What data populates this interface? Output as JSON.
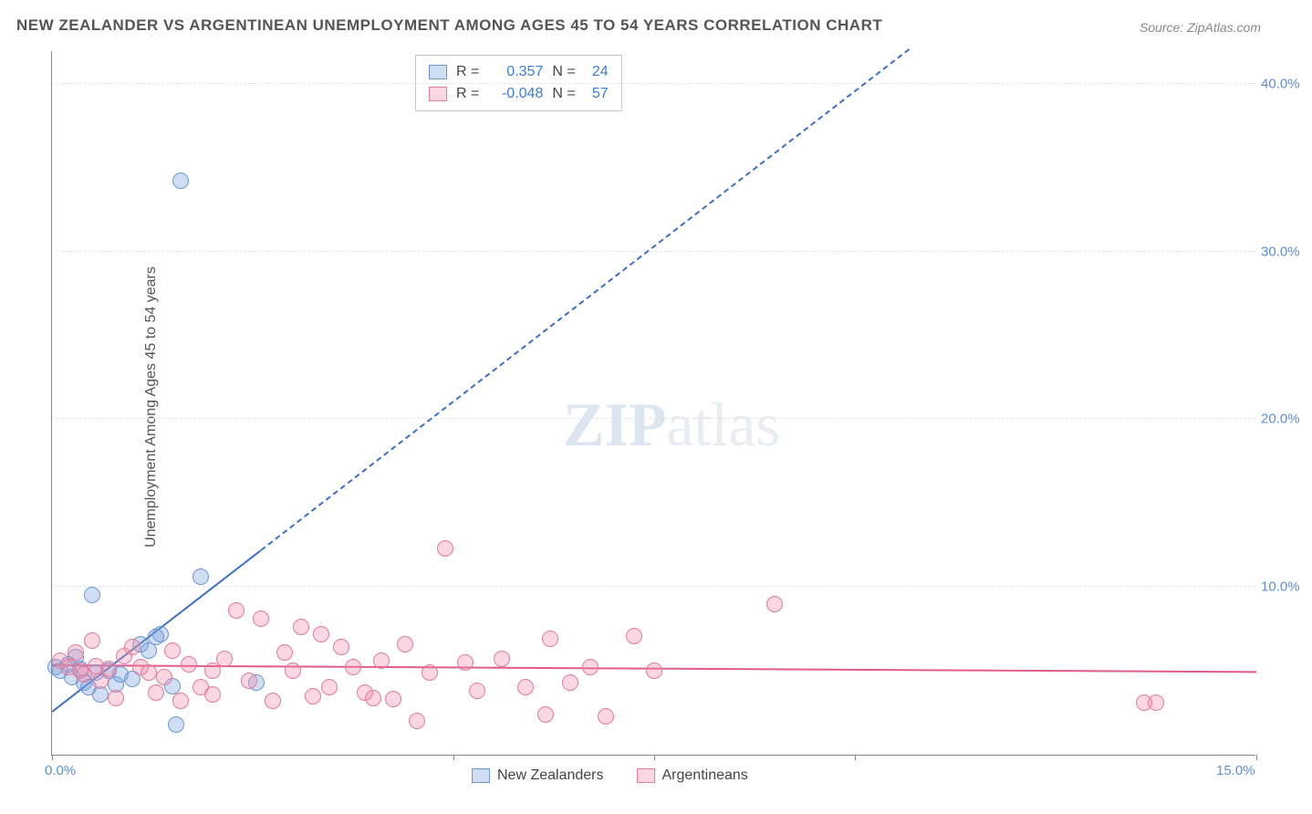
{
  "title": "NEW ZEALANDER VS ARGENTINEAN UNEMPLOYMENT AMONG AGES 45 TO 54 YEARS CORRELATION CHART",
  "source": "Source: ZipAtlas.com",
  "ylabel": "Unemployment Among Ages 45 to 54 years",
  "watermark_bold": "ZIP",
  "watermark_light": "atlas",
  "chart": {
    "type": "scatter",
    "xlim": [
      0,
      15
    ],
    "ylim": [
      0,
      42
    ],
    "xticks": [
      0,
      7.5,
      15
    ],
    "xtick_labels": [
      "0.0%",
      "",
      "15.0%"
    ],
    "xtick_minor": [
      5,
      10
    ],
    "yticks": [
      10,
      20,
      30,
      40
    ],
    "ytick_labels": [
      "10.0%",
      "20.0%",
      "30.0%",
      "40.0%"
    ],
    "grid_color": "#e4e4e4",
    "axis_color": "#888888",
    "background_color": "#ffffff",
    "marker_radius": 9,
    "marker_stroke_width": 1.5,
    "series": [
      {
        "name": "New Zealanders",
        "fill": "rgba(120,160,220,0.35)",
        "stroke": "#6a98d6",
        "r_value": "0.357",
        "n_value": "24",
        "trend": {
          "x1": 0,
          "y1": 2.5,
          "x2": 15,
          "y2": 58,
          "solid_until_x": 2.6,
          "color": "#3c6fc7"
        },
        "points": [
          [
            0.05,
            5.2
          ],
          [
            0.1,
            5.0
          ],
          [
            0.2,
            5.4
          ],
          [
            0.25,
            4.6
          ],
          [
            0.3,
            5.8
          ],
          [
            0.35,
            5.1
          ],
          [
            0.4,
            4.3
          ],
          [
            0.45,
            4.0
          ],
          [
            0.5,
            9.5
          ],
          [
            0.55,
            4.9
          ],
          [
            0.6,
            3.6
          ],
          [
            0.7,
            5.0
          ],
          [
            0.8,
            4.2
          ],
          [
            0.85,
            4.8
          ],
          [
            1.0,
            4.5
          ],
          [
            1.1,
            6.6
          ],
          [
            1.2,
            6.2
          ],
          [
            1.35,
            7.2
          ],
          [
            1.5,
            4.1
          ],
          [
            1.55,
            1.8
          ],
          [
            1.6,
            34.2
          ],
          [
            1.85,
            10.6
          ],
          [
            2.55,
            4.3
          ],
          [
            1.3,
            7.0
          ]
        ]
      },
      {
        "name": "Argentineans",
        "fill": "rgba(240,140,170,0.35)",
        "stroke": "#e27a9d",
        "r_value": "-0.048",
        "n_value": "57",
        "trend": {
          "x1": 0,
          "y1": 5.3,
          "x2": 15,
          "y2": 4.9,
          "solid_until_x": 15,
          "color": "#e05a8a"
        },
        "points": [
          [
            0.1,
            5.6
          ],
          [
            0.2,
            5.2
          ],
          [
            0.3,
            6.1
          ],
          [
            0.35,
            5.0
          ],
          [
            0.4,
            4.8
          ],
          [
            0.5,
            6.8
          ],
          [
            0.55,
            5.3
          ],
          [
            0.6,
            4.4
          ],
          [
            0.7,
            5.1
          ],
          [
            0.8,
            3.4
          ],
          [
            0.9,
            5.9
          ],
          [
            1.0,
            6.4
          ],
          [
            1.1,
            5.2
          ],
          [
            1.2,
            4.9
          ],
          [
            1.3,
            3.7
          ],
          [
            1.4,
            4.6
          ],
          [
            1.5,
            6.2
          ],
          [
            1.6,
            3.2
          ],
          [
            1.7,
            5.4
          ],
          [
            1.85,
            4.0
          ],
          [
            2.0,
            3.6
          ],
          [
            2.15,
            5.7
          ],
          [
            2.3,
            8.6
          ],
          [
            2.45,
            4.4
          ],
          [
            2.6,
            8.1
          ],
          [
            2.75,
            3.2
          ],
          [
            2.9,
            6.1
          ],
          [
            3.0,
            5.0
          ],
          [
            3.1,
            7.6
          ],
          [
            3.25,
            3.5
          ],
          [
            3.35,
            7.2
          ],
          [
            3.45,
            4.0
          ],
          [
            3.6,
            6.4
          ],
          [
            3.75,
            5.2
          ],
          [
            3.9,
            3.7
          ],
          [
            4.1,
            5.6
          ],
          [
            4.25,
            3.3
          ],
          [
            4.4,
            6.6
          ],
          [
            4.55,
            2.0
          ],
          [
            4.7,
            4.9
          ],
          [
            4.9,
            12.3
          ],
          [
            5.15,
            5.5
          ],
          [
            5.3,
            3.8
          ],
          [
            5.6,
            5.7
          ],
          [
            5.9,
            4.0
          ],
          [
            6.15,
            2.4
          ],
          [
            6.2,
            6.9
          ],
          [
            6.45,
            4.3
          ],
          [
            6.7,
            5.2
          ],
          [
            6.9,
            2.3
          ],
          [
            7.25,
            7.1
          ],
          [
            7.5,
            5.0
          ],
          [
            9.0,
            9.0
          ],
          [
            13.6,
            3.1
          ],
          [
            13.75,
            3.1
          ],
          [
            4.0,
            3.4
          ],
          [
            2.0,
            5.0
          ]
        ]
      }
    ]
  },
  "legend_top": {
    "r_label": "R =",
    "n_label": "N ="
  },
  "legend_bottom": [
    {
      "label": "New Zealanders",
      "fill": "rgba(120,160,220,0.35)",
      "stroke": "#6a98d6"
    },
    {
      "label": "Argentineans",
      "fill": "rgba(240,140,170,0.35)",
      "stroke": "#e27a9d"
    }
  ]
}
